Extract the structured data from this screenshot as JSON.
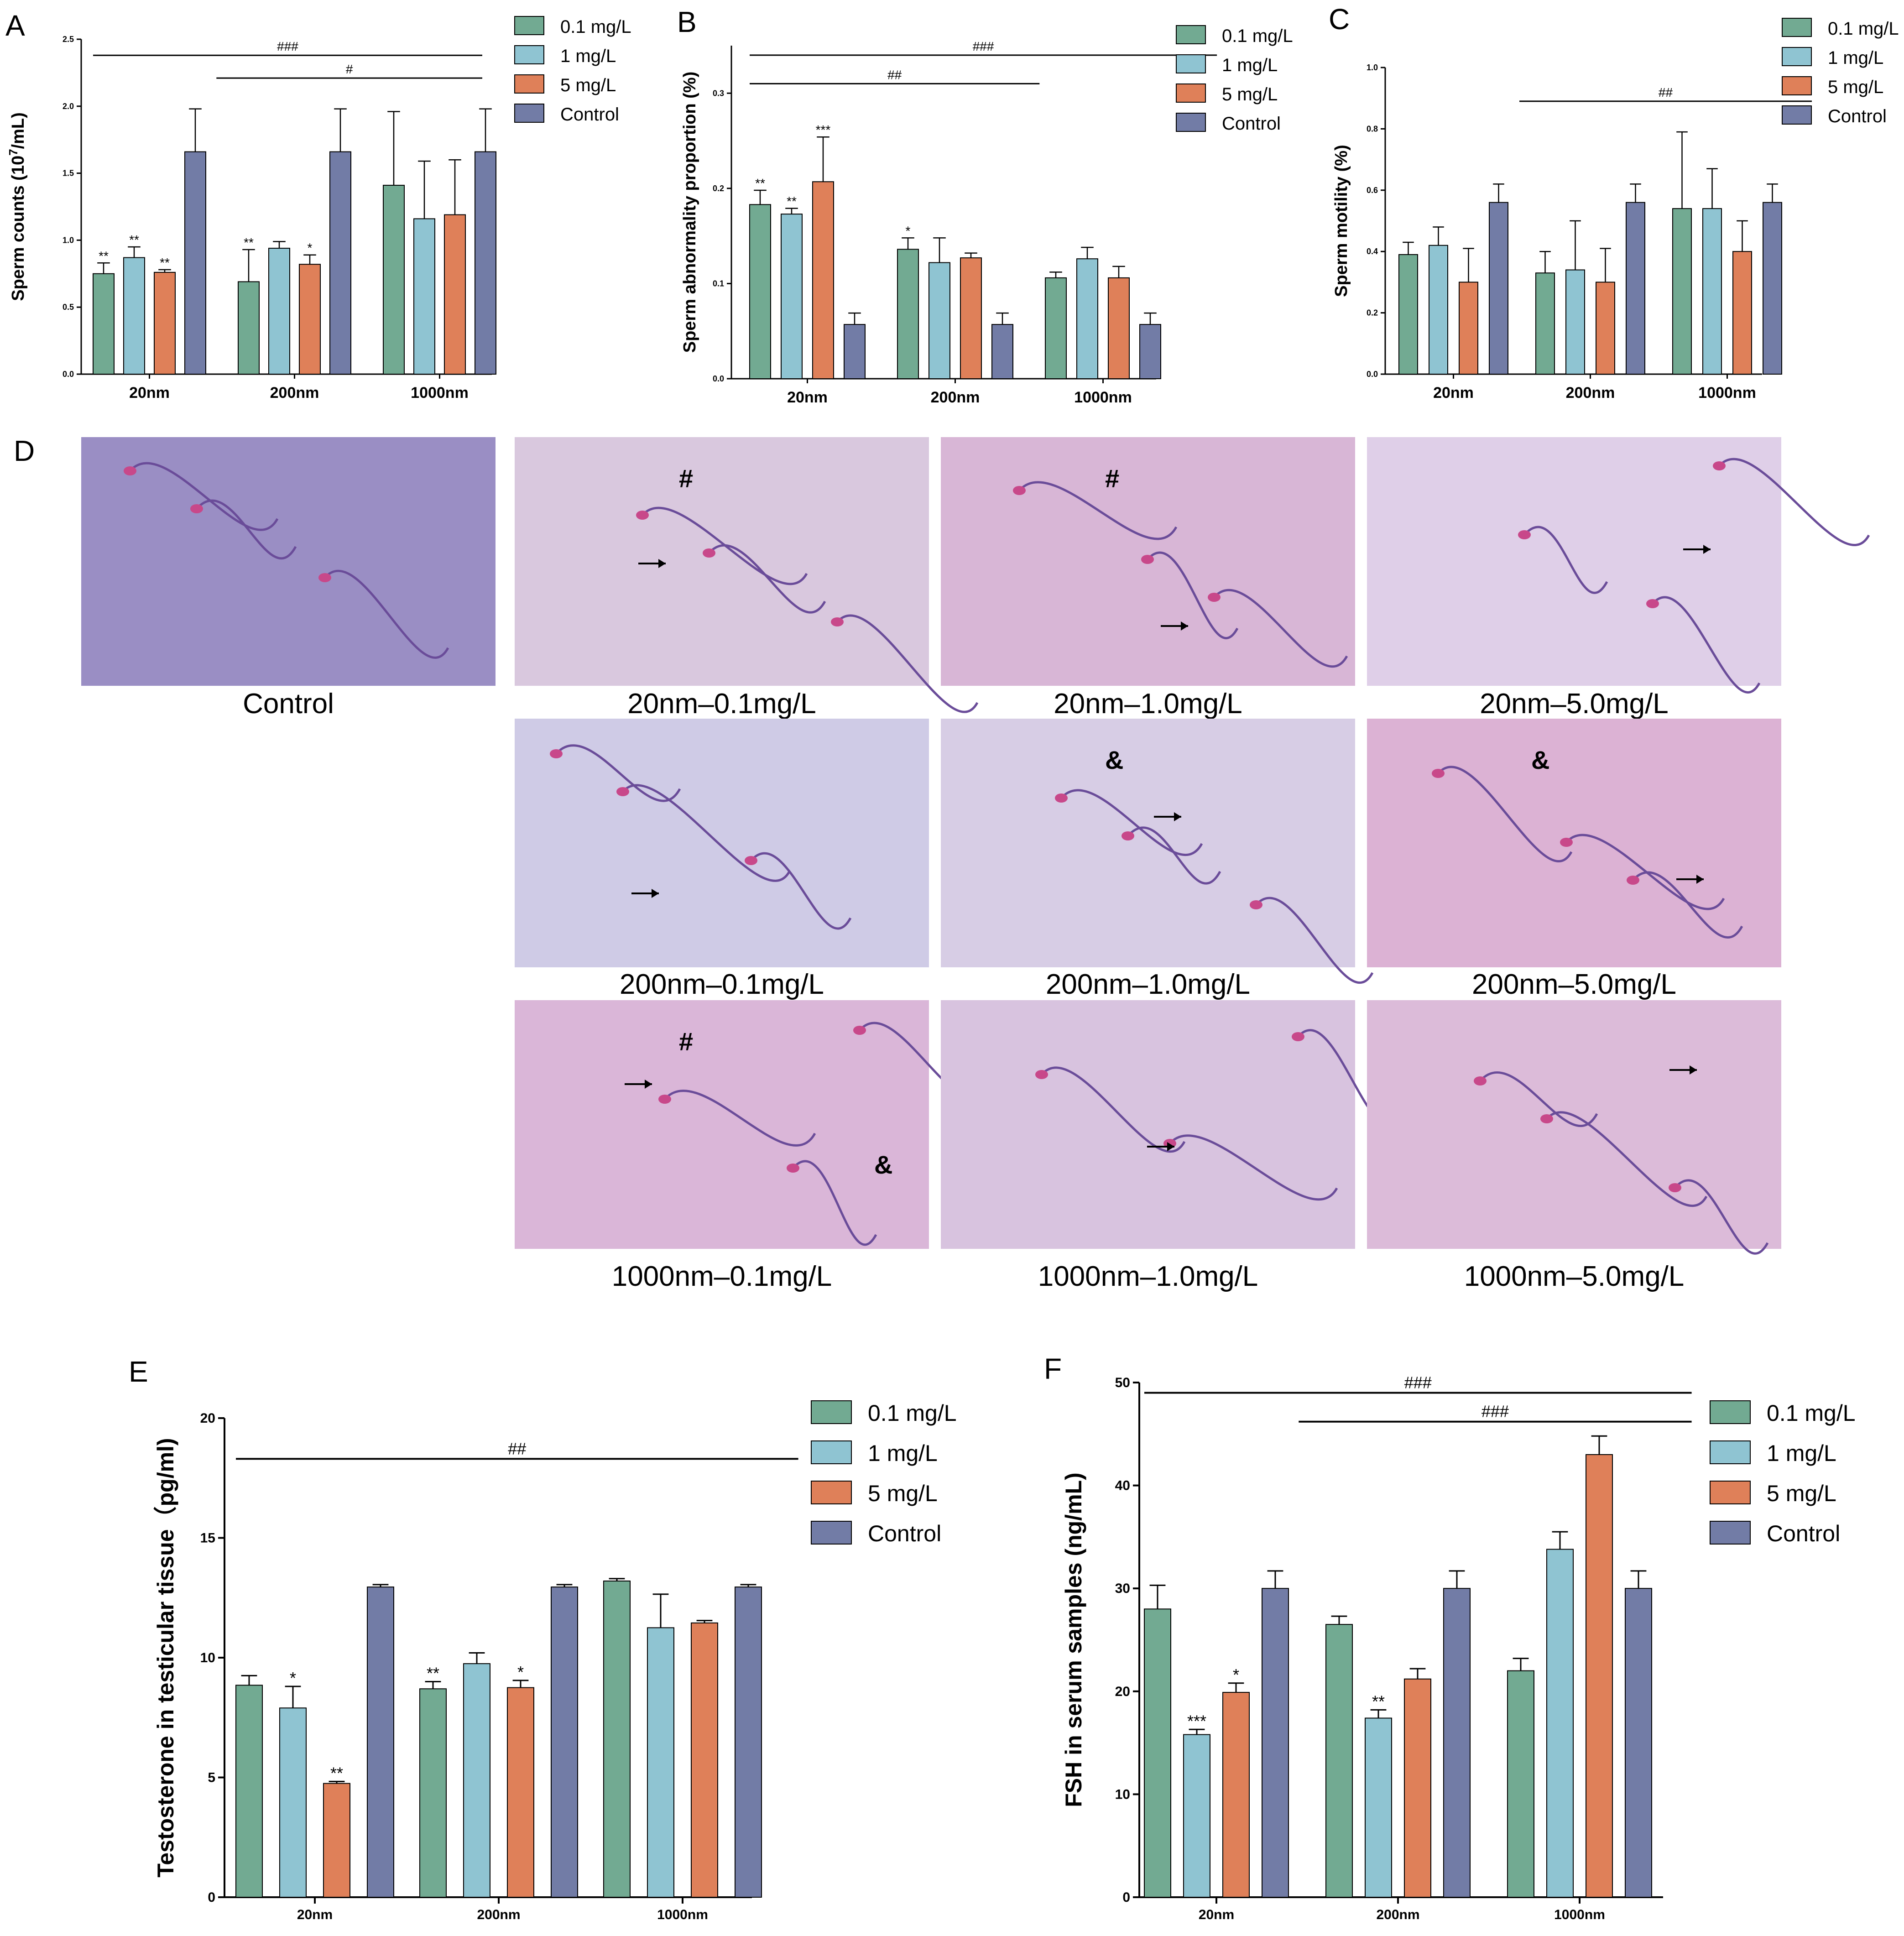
{
  "legend": [
    "0.1 mg/L",
    "1 mg/L",
    "5 mg/L",
    "Control"
  ],
  "colors": {
    "s0": "#72aa92",
    "s1": "#8fc4d2",
    "s2": "#df8059",
    "s3": "#727ca6"
  },
  "chart_data": [
    {
      "id": "A",
      "type": "bar",
      "panel": "A",
      "categories": [
        "20nm",
        "200nm",
        "1000nm"
      ],
      "ylabel": "Sperm counts (10",
      "ylabel_sup": "7",
      "ylabel_tail": "/mL)",
      "ylim": [
        0,
        2.5
      ],
      "yticks": [
        "0.0",
        "0.5",
        "1.0",
        "1.5",
        "2.0",
        "2.5"
      ],
      "series": [
        {
          "name": "0.1 mg/L",
          "values": [
            0.75,
            0.69,
            1.41
          ],
          "errors": [
            0.08,
            0.24,
            0.55
          ]
        },
        {
          "name": "1 mg/L",
          "values": [
            0.87,
            0.94,
            1.16
          ],
          "errors": [
            0.08,
            0.05,
            0.43
          ]
        },
        {
          "name": "5 mg/L",
          "values": [
            0.76,
            0.82,
            1.19
          ],
          "errors": [
            0.02,
            0.07,
            0.41
          ]
        },
        {
          "name": "Control",
          "values": [
            1.66,
            1.66,
            1.66
          ],
          "errors": [
            0.32,
            0.32,
            0.32
          ]
        }
      ],
      "annotations": [
        [
          "**",
          "**",
          ""
        ],
        [
          "**",
          "",
          ""
        ],
        [
          "**",
          "*",
          ""
        ],
        [
          "",
          "",
          ""
        ]
      ],
      "brackets": [
        {
          "label": "###",
          "from": 0,
          "to": 2,
          "y": 2.38
        },
        {
          "label": "#",
          "from": 0.85,
          "to": 2,
          "y": 2.21
        }
      ]
    },
    {
      "id": "B",
      "type": "bar",
      "panel": "B",
      "categories": [
        "20nm",
        "200nm",
        "1000nm"
      ],
      "ylabel": "Sperm abnormality proportion (%)",
      "ylim": [
        0,
        0.35
      ],
      "yticks": [
        "0.0",
        "0.1",
        "0.2",
        "0.3"
      ],
      "series": [
        {
          "name": "0.1 mg/L",
          "values": [
            0.183,
            0.136,
            0.106
          ],
          "errors": [
            0.015,
            0.012,
            0.006
          ]
        },
        {
          "name": "1 mg/L",
          "values": [
            0.173,
            0.122,
            0.126
          ],
          "errors": [
            0.006,
            0.026,
            0.012
          ]
        },
        {
          "name": "5 mg/L",
          "values": [
            0.207,
            0.127,
            0.106
          ],
          "errors": [
            0.047,
            0.005,
            0.012
          ]
        },
        {
          "name": "Control",
          "values": [
            0.057,
            0.057,
            0.057
          ],
          "errors": [
            0.012,
            0.012,
            0.012
          ]
        }
      ],
      "annotations": [
        [
          "**",
          "*",
          ""
        ],
        [
          "**",
          "",
          ""
        ],
        [
          "***",
          "",
          ""
        ],
        [
          "",
          "",
          ""
        ]
      ],
      "brackets": [
        {
          "label": "###",
          "from": 0,
          "to": 2.38,
          "y": 0.34
        },
        {
          "label": "##",
          "from": 0,
          "to": 1.18,
          "y": 0.31
        }
      ]
    },
    {
      "id": "C",
      "type": "bar",
      "panel": "C",
      "categories": [
        "20nm",
        "200nm",
        "1000nm"
      ],
      "ylabel": "Sperm motility (%)",
      "ylim": [
        0,
        1.0
      ],
      "yticks": [
        "0.0",
        "0.2",
        "0.4",
        "0.6",
        "0.8",
        "1.0"
      ],
      "series": [
        {
          "name": "0.1 mg/L",
          "values": [
            0.39,
            0.33,
            0.54
          ],
          "errors": [
            0.04,
            0.07,
            0.25
          ]
        },
        {
          "name": "1 mg/L",
          "values": [
            0.42,
            0.34,
            0.54
          ],
          "errors": [
            0.06,
            0.16,
            0.13
          ]
        },
        {
          "name": "5 mg/L",
          "values": [
            0.3,
            0.3,
            0.4
          ],
          "errors": [
            0.11,
            0.11,
            0.1
          ]
        },
        {
          "name": "Control",
          "values": [
            0.56,
            0.56,
            0.56
          ],
          "errors": [
            0.06,
            0.06,
            0.06
          ]
        }
      ],
      "annotations": [
        [
          "",
          "",
          ""
        ],
        [
          "",
          "",
          ""
        ],
        [
          "",
          "",
          ""
        ],
        [
          "",
          "",
          ""
        ]
      ],
      "brackets": [
        {
          "label": "##",
          "from": 0.88,
          "to": 2.22,
          "y": 0.89
        }
      ]
    },
    {
      "id": "E",
      "type": "bar",
      "panel": "E",
      "categories": [
        "20nm",
        "200nm",
        "1000nm"
      ],
      "ylabel": "Testosterone in testicular tissue（pg/ml)",
      "ylim": [
        0,
        20
      ],
      "yticks": [
        "0",
        "5",
        "10",
        "15",
        "20"
      ],
      "series": [
        {
          "name": "0.1 mg/L",
          "values": [
            8.85,
            8.7,
            13.2
          ],
          "errors": [
            0.4,
            0.3,
            0.1
          ]
        },
        {
          "name": "1 mg/L",
          "values": [
            7.9,
            9.75,
            11.25
          ],
          "errors": [
            0.9,
            0.45,
            1.4
          ]
        },
        {
          "name": "5 mg/L",
          "values": [
            4.75,
            8.75,
            11.45
          ],
          "errors": [
            0.08,
            0.3,
            0.1
          ]
        },
        {
          "name": "Control",
          "values": [
            12.95,
            12.95,
            12.95
          ],
          "errors": [
            0.1,
            0.1,
            0.1
          ]
        }
      ],
      "annotations": [
        [
          "",
          "**",
          ""
        ],
        [
          "*",
          "",
          ""
        ],
        [
          "**",
          "*",
          ""
        ],
        [
          "",
          "",
          ""
        ]
      ],
      "brackets": [
        {
          "label": "##",
          "from": 0,
          "to": 2.2,
          "y": 18.3
        }
      ]
    },
    {
      "id": "F",
      "type": "bar",
      "panel": "F",
      "categories": [
        "20nm",
        "200nm",
        "1000nm"
      ],
      "ylabel": "FSH in serum samples (ng/mL)",
      "ylim": [
        0,
        50
      ],
      "yticks": [
        "0",
        "10",
        "20",
        "30",
        "40",
        "50"
      ],
      "series": [
        {
          "name": "0.1 mg/L",
          "values": [
            28.0,
            26.5,
            22.0
          ],
          "errors": [
            2.3,
            0.8,
            1.2
          ]
        },
        {
          "name": "1 mg/L",
          "values": [
            15.8,
            17.4,
            33.8
          ],
          "errors": [
            0.5,
            0.8,
            1.7
          ]
        },
        {
          "name": "5 mg/L",
          "values": [
            19.9,
            21.2,
            43.0
          ],
          "errors": [
            0.9,
            1.0,
            1.8
          ]
        },
        {
          "name": "Control",
          "values": [
            30.0,
            30.0,
            30.0
          ],
          "errors": [
            1.7,
            1.7,
            1.7
          ]
        }
      ],
      "annotations": [
        [
          "",
          "",
          ""
        ],
        [
          "***",
          "**",
          ""
        ],
        [
          "*",
          "",
          ""
        ],
        [
          "",
          "",
          ""
        ]
      ],
      "brackets": [
        {
          "label": "###",
          "from": 0,
          "to": 2.22,
          "y": 49.0
        },
        {
          "label": "###",
          "from": 0.85,
          "to": 2.22,
          "y": 46.2
        }
      ]
    }
  ],
  "micrographs": {
    "panel_letter": "D",
    "images": [
      {
        "caption": "Control",
        "bg": "#9a8ec4",
        "marks": []
      },
      {
        "caption": "20nm–0.1mg/L",
        "bg": "#d9c8de",
        "marks": [
          {
            "t": "#"
          }
        ]
      },
      {
        "caption": "20nm–1.0mg/L",
        "bg": "#d8b6d6",
        "marks": [
          {
            "t": "#"
          }
        ]
      },
      {
        "caption": "20nm–5.0mg/L",
        "bg": "#dfcfe8",
        "marks": []
      },
      {
        "caption": "200nm–0.1mg/L",
        "bg": "#cfcbe6",
        "marks": []
      },
      {
        "caption": "200nm–1.0mg/L",
        "bg": "#d7cde5",
        "marks": [
          {
            "t": "&"
          }
        ]
      },
      {
        "caption": "200nm–5.0mg/L",
        "bg": "#dcb2d4",
        "marks": [
          {
            "t": "&"
          }
        ]
      },
      {
        "caption": "1000nm–0.1mg/L",
        "bg": "#dab6d8",
        "marks": [
          {
            "t": "#"
          },
          {
            "t": "&"
          }
        ]
      },
      {
        "caption": "1000nm–1.0mg/L",
        "bg": "#d8c3df",
        "marks": []
      },
      {
        "caption": "1000nm–5.0mg/L",
        "bg": "#dcbbd9",
        "marks": []
      }
    ]
  }
}
